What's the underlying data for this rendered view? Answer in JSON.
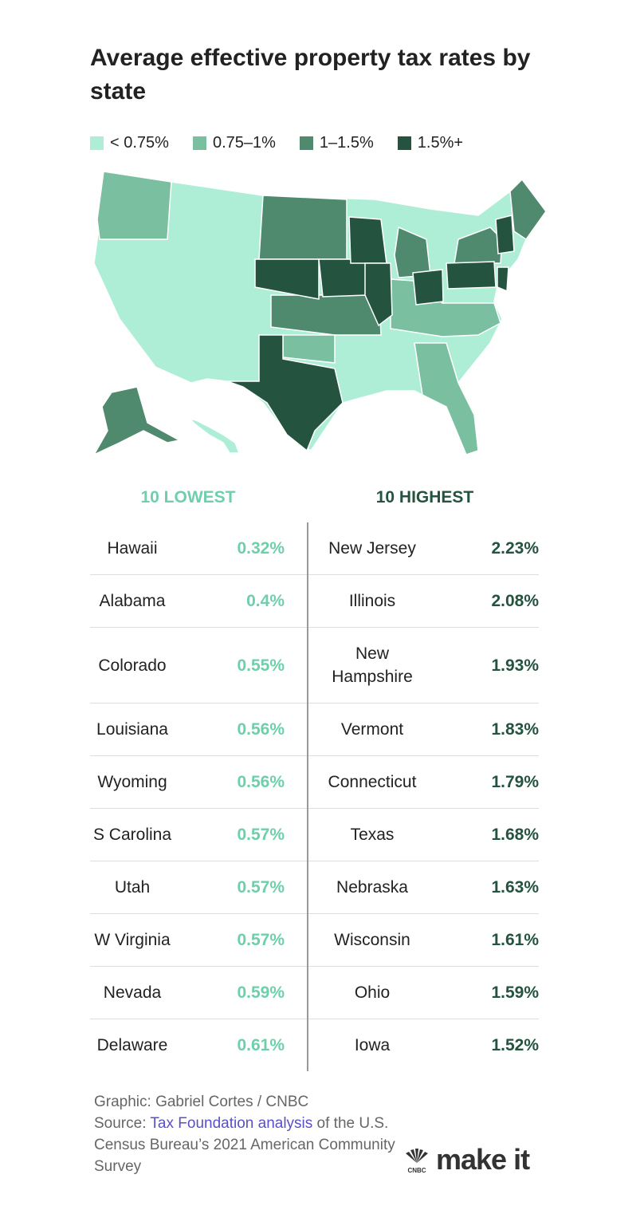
{
  "header": {
    "title": "Average effective property tax rates by state"
  },
  "legend": [
    {
      "label": "< 0.75%",
      "color": "#aeeed6"
    },
    {
      "label": "0.75–1%",
      "color": "#7bbfa1"
    },
    {
      "label": "1–1.5%",
      "color": "#4f8a6e"
    },
    {
      "label": "1.5%+",
      "color": "#24533f"
    }
  ],
  "table": {
    "lowest": {
      "heading": "10 LOWEST",
      "color": "#6fcfab",
      "rows": [
        [
          "Hawaii",
          "0.32%"
        ],
        [
          "Alabama",
          "0.4%"
        ],
        [
          "Colorado",
          "0.55%"
        ],
        [
          "Louisiana",
          "0.56%"
        ],
        [
          "Wyoming",
          "0.56%"
        ],
        [
          "S Carolina",
          "0.57%"
        ],
        [
          "Utah",
          "0.57%"
        ],
        [
          "W Virginia",
          "0.57%"
        ],
        [
          "Nevada",
          "0.59%"
        ],
        [
          "Delaware",
          "0.61%"
        ]
      ]
    },
    "highest": {
      "heading": "10 HIGHEST",
      "color": "#24533f",
      "rows": [
        [
          "New Jersey",
          "2.23%"
        ],
        [
          "Illinois",
          "2.08%"
        ],
        [
          "New Hampshire",
          "1.93%"
        ],
        [
          "Vermont",
          "1.83%"
        ],
        [
          "Connecticut",
          "1.79%"
        ],
        [
          "Texas",
          "1.68%"
        ],
        [
          "Nebraska",
          "1.63%"
        ],
        [
          "Wisconsin",
          "1.61%"
        ],
        [
          "Ohio",
          "1.59%"
        ],
        [
          "Iowa",
          "1.52%"
        ]
      ]
    }
  },
  "footer": {
    "credit": "Graphic: Gabriel Cortes / CNBC",
    "source_label": "Source:",
    "source_link": "Tax Foundation analysis",
    "source_rest": "of the U.S. Census Bureau’s 2021 American Community Survey"
  },
  "logo": {
    "network": "CNBC",
    "brand": "make it"
  }
}
